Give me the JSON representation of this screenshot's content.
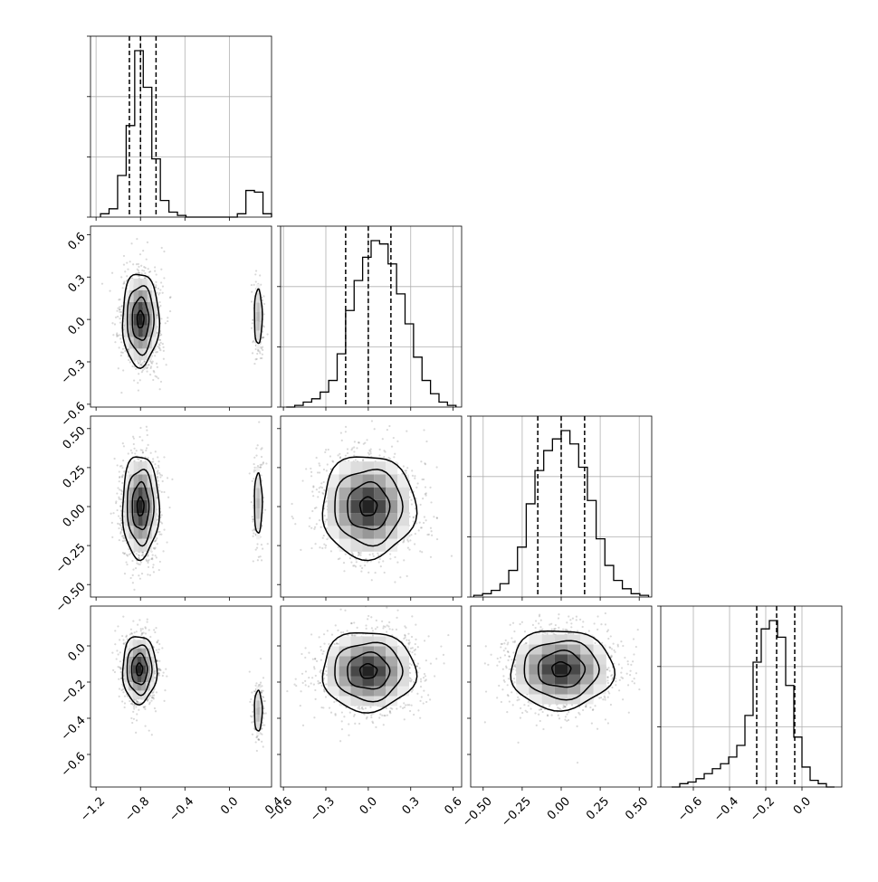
{
  "chart_data": {
    "type": "corner",
    "grid": true,
    "parameters": [
      {
        "range": [
          -1.25,
          0.38
        ],
        "ticks": [
          -1.2,
          -0.8,
          -0.4,
          0.0,
          0.4
        ],
        "tick_labels": [
          "−1.2",
          "−0.8",
          "−0.4",
          "0.0",
          "0.4"
        ],
        "quantiles": [
          -0.9,
          -0.8,
          -0.66
        ],
        "hist_edges": [
          -1.16,
          -0.08
        ],
        "hist_counts": [
          0.02,
          0.05,
          0.25,
          0.55,
          1.0,
          0.78,
          0.35,
          0.1,
          0.03,
          0.01,
          0.0,
          0.0,
          0.0,
          0.0,
          0.0,
          0.0,
          0.02,
          0.16,
          0.15,
          0.02
        ],
        "hist_range": [
          -1.16,
          0.38
        ],
        "modes": [
          {
            "center": -0.8,
            "sigma": 0.085,
            "weight": 0.85
          },
          {
            "center": 0.27,
            "sigma": 0.025,
            "weight": 0.15
          }
        ]
      },
      {
        "range": [
          -0.62,
          0.66
        ],
        "ticks": [
          -0.6,
          -0.3,
          0.0,
          0.3,
          0.6
        ],
        "tick_labels": [
          "−0.6",
          "−0.3",
          "0.0",
          "0.3",
          "0.6"
        ],
        "quantiles": [
          -0.16,
          0.0,
          0.16
        ],
        "hist_counts": [
          0.0,
          0.01,
          0.03,
          0.05,
          0.09,
          0.16,
          0.32,
          0.58,
          0.76,
          0.9,
          1.0,
          0.98,
          0.86,
          0.68,
          0.5,
          0.3,
          0.16,
          0.08,
          0.03,
          0.01
        ],
        "hist_range": [
          -0.58,
          0.62
        ],
        "modes": [
          {
            "center": 0.0,
            "sigma": 0.15,
            "weight": 1.0
          }
        ]
      },
      {
        "range": [
          -0.58,
          0.58
        ],
        "ticks": [
          -0.5,
          -0.25,
          0.0,
          0.25,
          0.5
        ],
        "tick_labels": [
          "−0.50",
          "−0.25",
          "0.00",
          "0.25",
          "0.50"
        ],
        "quantiles": [
          -0.15,
          0.0,
          0.15
        ],
        "hist_counts": [
          0.01,
          0.02,
          0.04,
          0.08,
          0.16,
          0.3,
          0.56,
          0.76,
          0.88,
          0.95,
          1.0,
          0.92,
          0.78,
          0.58,
          0.35,
          0.19,
          0.1,
          0.05,
          0.02,
          0.01
        ],
        "hist_range": [
          -0.56,
          0.56
        ],
        "modes": [
          {
            "center": 0.0,
            "sigma": 0.15,
            "weight": 1.0
          }
        ]
      },
      {
        "range": [
          -0.78,
          0.22
        ],
        "ticks": [
          -0.6,
          -0.4,
          -0.2,
          0.0
        ],
        "tick_labels": [
          "−0.6",
          "−0.4",
          "−0.2",
          "0.0"
        ],
        "quantiles": [
          -0.25,
          -0.14,
          -0.04
        ],
        "hist_counts": [
          0.0,
          0.02,
          0.03,
          0.05,
          0.08,
          0.11,
          0.14,
          0.18,
          0.25,
          0.43,
          0.75,
          0.95,
          1.0,
          0.9,
          0.61,
          0.3,
          0.12,
          0.04,
          0.02,
          0.0
        ],
        "hist_range": [
          -0.72,
          0.18
        ],
        "modes": [
          {
            "center": -0.13,
            "sigma": 0.1,
            "weight": 1.0
          }
        ]
      }
    ],
    "correlations": {
      "1-0": [
        {
          "mx": -0.8,
          "my": 0.0,
          "sx": 0.075,
          "sy": 0.15,
          "w": 0.85
        },
        {
          "mx": 0.26,
          "my": 0.02,
          "sx": 0.022,
          "sy": 0.12,
          "w": 0.15
        }
      ],
      "2-0": [
        {
          "mx": -0.8,
          "my": 0.0,
          "sx": 0.075,
          "sy": 0.15,
          "w": 0.85
        },
        {
          "mx": 0.26,
          "my": 0.02,
          "sx": 0.022,
          "sy": 0.12,
          "w": 0.15
        }
      ],
      "2-1": [
        {
          "mx": 0.0,
          "my": 0.0,
          "sx": 0.15,
          "sy": 0.15,
          "w": 1.0
        }
      ],
      "3-0": [
        {
          "mx": -0.81,
          "my": -0.13,
          "sx": 0.07,
          "sy": 0.085,
          "w": 0.85
        },
        {
          "mx": 0.26,
          "my": -0.36,
          "sx": 0.022,
          "sy": 0.07,
          "w": 0.15
        }
      ],
      "3-1": [
        {
          "mx": 0.0,
          "my": -0.14,
          "sx": 0.15,
          "sy": 0.1,
          "w": 1.0
        }
      ],
      "3-2": [
        {
          "mx": 0.0,
          "my": -0.13,
          "sx": 0.15,
          "sy": 0.1,
          "w": 1.0
        }
      ]
    },
    "contour_levels": [
      0.12,
      0.4,
      0.72,
      0.95
    ]
  }
}
